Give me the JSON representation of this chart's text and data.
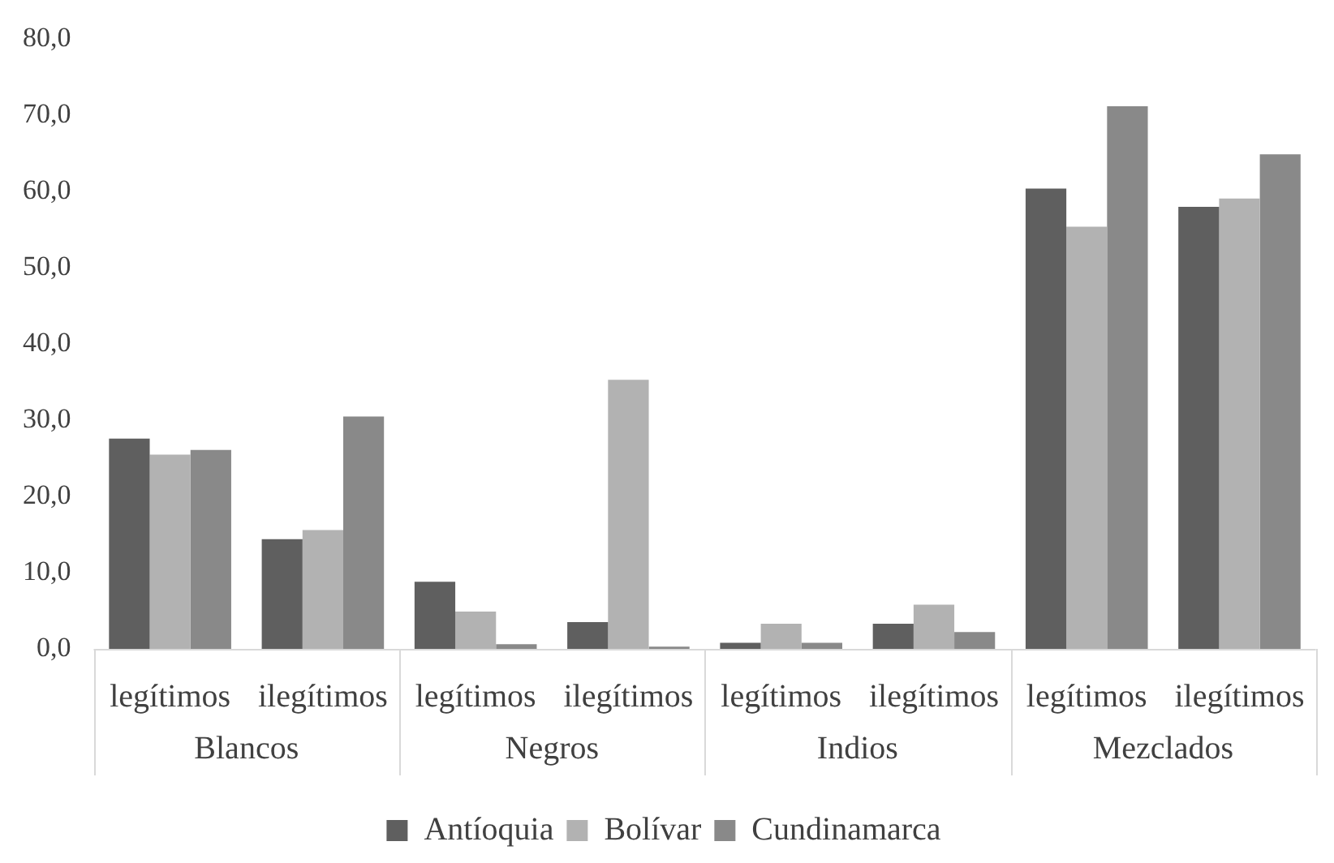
{
  "chart_data": {
    "type": "bar",
    "categories": [
      "legítimos",
      "ilegítimos",
      "legítimos",
      "ilegítimos",
      "legítimos",
      "ilegítimos",
      "legítimos",
      "ilegítimos"
    ],
    "annotations": [
      "Blancos",
      "Negros",
      "Indios",
      "Mezclados"
    ],
    "series": [
      {
        "name": "Antíoquia",
        "color": "#5f5f5f",
        "values": [
          27.6,
          14.4,
          8.8,
          3.5,
          0.8,
          3.3,
          60.4,
          58.0
        ]
      },
      {
        "name": "Bolívar",
        "color": "#b2b2b2",
        "values": [
          25.5,
          15.6,
          4.9,
          35.3,
          3.3,
          5.8,
          55.4,
          59.1
        ]
      },
      {
        "name": "Cundinamarca",
        "color": "#898989",
        "values": [
          26.1,
          30.5,
          0.6,
          0.3,
          0.8,
          2.2,
          71.2,
          64.9
        ]
      }
    ],
    "ylim": [
      0,
      80
    ],
    "yticks": [
      {
        "value": 0,
        "label": "0,0"
      },
      {
        "value": 10,
        "label": "10,0"
      },
      {
        "value": 20,
        "label": "20,0"
      },
      {
        "value": 30,
        "label": "30,0"
      },
      {
        "value": 40,
        "label": "40,0"
      },
      {
        "value": 50,
        "label": "50,0"
      },
      {
        "value": 60,
        "label": "60,0"
      },
      {
        "value": 70,
        "label": "70,0"
      },
      {
        "value": 80,
        "label": "80,0"
      }
    ],
    "grid": false,
    "legend": "bottom"
  }
}
